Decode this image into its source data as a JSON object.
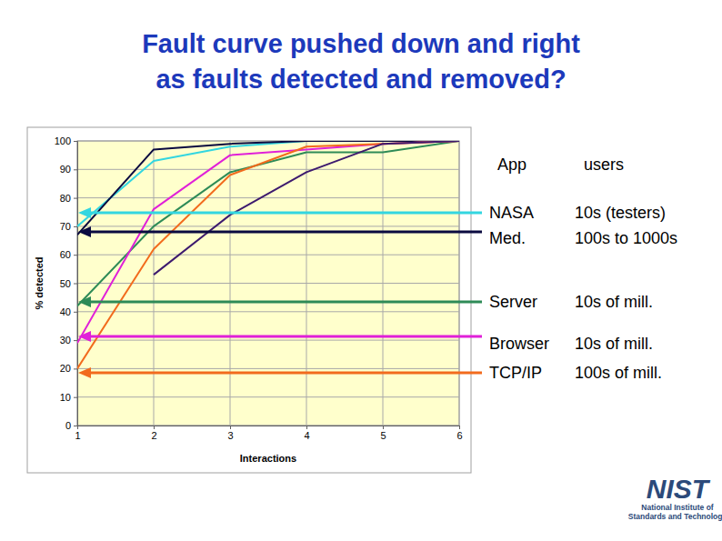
{
  "chart_data": {
    "type": "line",
    "title": [
      "Fault curve pushed down and right",
      "as faults detected and removed?"
    ],
    "x_label": "Interactions",
    "y_label": "% detected",
    "x": [
      1,
      2,
      3,
      4,
      5,
      6
    ],
    "xlim": [
      1,
      6
    ],
    "xticks": [
      1,
      2,
      3,
      4,
      5,
      6
    ],
    "ylim": [
      0,
      100
    ],
    "yticks": [
      0,
      10,
      20,
      30,
      40,
      50,
      60,
      70,
      80,
      90,
      100
    ],
    "grid": true,
    "legend_header": [
      "App",
      "users"
    ],
    "series": [
      {
        "name": "NASA",
        "users": "10s (testers)",
        "color": "#33d6e0",
        "values": [
          70,
          93,
          98,
          100,
          100,
          100
        ]
      },
      {
        "name": "Med.",
        "users": "100s to 1000s",
        "color": "#0a0a40",
        "values": [
          67,
          97,
          99,
          100,
          100,
          100
        ]
      },
      {
        "name": "Server",
        "users": "10s of mill.",
        "color": "#2e8b57",
        "values": [
          42,
          70,
          89,
          96,
          96,
          100
        ]
      },
      {
        "name": "Browser",
        "users": "10s of mill.",
        "color": "#e020d8",
        "values": [
          29,
          76,
          95,
          97,
          99,
          100
        ]
      },
      {
        "name": "TCP/IP",
        "users": "100s of mill.",
        "color": "#f26b1d",
        "values": [
          20,
          62,
          88,
          98,
          99,
          100
        ]
      },
      {
        "color": "#3d1a6e",
        "values": [
          null,
          53,
          74,
          89,
          99,
          100
        ]
      }
    ],
    "logo": [
      "NIST",
      "National Institute of",
      "Standards and Technology"
    ]
  }
}
